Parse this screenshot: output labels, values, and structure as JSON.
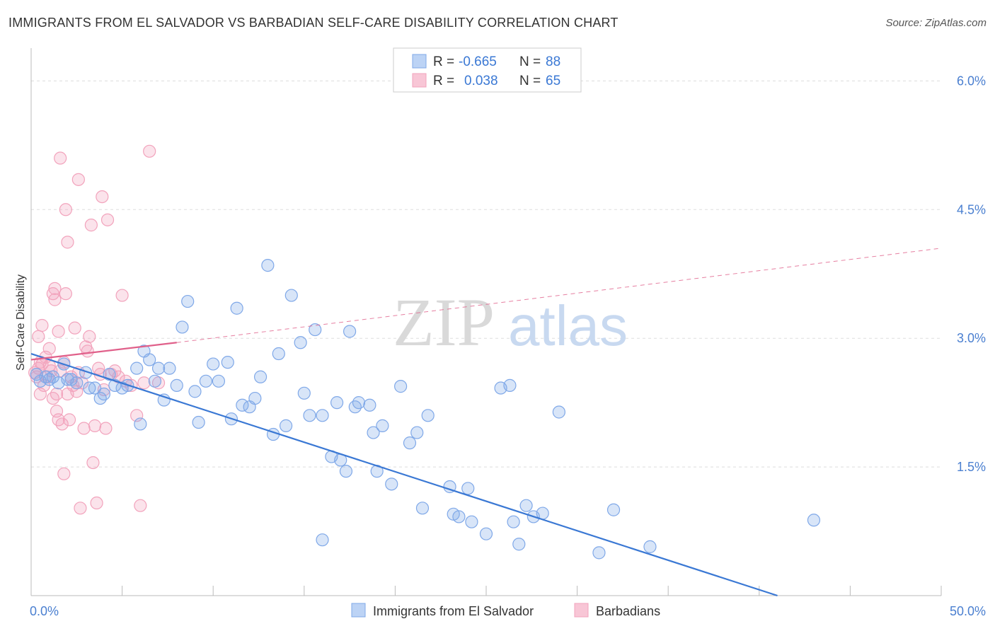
{
  "title": "IMMIGRANTS FROM EL SALVADOR VS BARBADIAN SELF-CARE DISABILITY CORRELATION CHART",
  "source": "Source: ZipAtlas.com",
  "watermark": {
    "zip": "ZIP",
    "atlas": "atlas"
  },
  "chart_data": {
    "type": "scatter",
    "ylabel": "Self-Care Disability",
    "xlim": [
      0,
      50
    ],
    "ylim": [
      0,
      6.3
    ],
    "x_tick_labels": [
      "0.0%",
      "50.0%"
    ],
    "y_ticks": [
      1.5,
      3.0,
      4.5,
      6.0
    ],
    "y_tick_labels": [
      "1.5%",
      "3.0%",
      "4.5%",
      "6.0%"
    ],
    "grid": "horizontal dashed",
    "legend": {
      "position": "top-center",
      "entries": [
        {
          "r_label": "R =",
          "r": "-0.665",
          "n_label": "N =",
          "n": "88"
        },
        {
          "r_label": "R =",
          "r": "0.038",
          "n_label": "N =",
          "n": "65"
        }
      ]
    },
    "series": [
      {
        "name": "Immigrants from El Salvador",
        "color": "#7fa8e8",
        "trend_color": "#3a78d4",
        "trend": {
          "x": [
            0,
            41
          ],
          "y": [
            2.82,
            0.0
          ]
        },
        "points": [
          [
            0.3,
            2.58
          ],
          [
            0.5,
            2.5
          ],
          [
            0.8,
            2.55
          ],
          [
            1.0,
            2.52
          ],
          [
            1.2,
            2.55
          ],
          [
            1.5,
            2.48
          ],
          [
            1.8,
            2.7
          ],
          [
            2.0,
            2.52
          ],
          [
            2.2,
            2.52
          ],
          [
            2.5,
            2.48
          ],
          [
            3.0,
            2.6
          ],
          [
            3.2,
            2.42
          ],
          [
            3.5,
            2.42
          ],
          [
            3.8,
            2.3
          ],
          [
            4.0,
            2.35
          ],
          [
            4.3,
            2.58
          ],
          [
            4.6,
            2.45
          ],
          [
            5.0,
            2.42
          ],
          [
            5.3,
            2.45
          ],
          [
            5.8,
            2.65
          ],
          [
            6.0,
            2.0
          ],
          [
            6.2,
            2.85
          ],
          [
            6.5,
            2.75
          ],
          [
            6.8,
            2.5
          ],
          [
            7.0,
            2.65
          ],
          [
            7.3,
            2.28
          ],
          [
            7.6,
            2.65
          ],
          [
            8.0,
            2.45
          ],
          [
            8.3,
            3.13
          ],
          [
            8.6,
            3.43
          ],
          [
            9.0,
            2.38
          ],
          [
            9.2,
            2.02
          ],
          [
            9.6,
            2.5
          ],
          [
            10.0,
            2.7
          ],
          [
            10.3,
            2.5
          ],
          [
            10.8,
            2.72
          ],
          [
            11.0,
            2.06
          ],
          [
            11.3,
            3.35
          ],
          [
            11.6,
            2.22
          ],
          [
            12.0,
            2.2
          ],
          [
            12.3,
            2.3
          ],
          [
            12.6,
            2.55
          ],
          [
            13.0,
            3.85
          ],
          [
            13.3,
            1.88
          ],
          [
            13.6,
            2.82
          ],
          [
            14.0,
            1.98
          ],
          [
            14.3,
            3.5
          ],
          [
            14.8,
            2.95
          ],
          [
            15.0,
            2.36
          ],
          [
            15.3,
            2.1
          ],
          [
            15.6,
            3.1
          ],
          [
            16.0,
            2.1
          ],
          [
            16.5,
            1.62
          ],
          [
            16.8,
            2.25
          ],
          [
            17.0,
            1.58
          ],
          [
            17.3,
            1.45
          ],
          [
            17.5,
            3.08
          ],
          [
            17.8,
            2.2
          ],
          [
            18.0,
            2.25
          ],
          [
            18.6,
            2.22
          ],
          [
            18.8,
            1.9
          ],
          [
            19.0,
            1.45
          ],
          [
            19.3,
            1.98
          ],
          [
            19.8,
            1.3
          ],
          [
            20.3,
            2.44
          ],
          [
            20.8,
            1.78
          ],
          [
            21.2,
            1.9
          ],
          [
            21.5,
            1.02
          ],
          [
            21.8,
            2.1
          ],
          [
            23.0,
            1.27
          ],
          [
            23.2,
            0.95
          ],
          [
            23.5,
            0.92
          ],
          [
            24.0,
            1.25
          ],
          [
            24.2,
            0.86
          ],
          [
            25.0,
            0.72
          ],
          [
            25.8,
            2.42
          ],
          [
            26.3,
            2.45
          ],
          [
            26.5,
            0.86
          ],
          [
            26.8,
            0.6
          ],
          [
            27.2,
            1.05
          ],
          [
            27.6,
            0.92
          ],
          [
            28.1,
            0.96
          ],
          [
            29.0,
            2.14
          ],
          [
            31.2,
            0.5
          ],
          [
            32.0,
            1.0
          ],
          [
            34.0,
            0.57
          ],
          [
            43.0,
            0.88
          ],
          [
            16.0,
            0.65
          ]
        ]
      },
      {
        "name": "Barbadians",
        "color": "#f2a3bc",
        "trend_color": "#e0608a",
        "trend": {
          "x": [
            0,
            8
          ],
          "y": [
            2.75,
            2.95
          ]
        },
        "trend_extension": {
          "x": [
            8,
            50
          ],
          "y": [
            2.95,
            4.05
          ]
        },
        "points": [
          [
            0.2,
            2.6
          ],
          [
            0.3,
            2.55
          ],
          [
            0.4,
            2.65
          ],
          [
            0.5,
            2.72
          ],
          [
            0.6,
            2.7
          ],
          [
            0.5,
            2.35
          ],
          [
            0.4,
            3.02
          ],
          [
            0.7,
            2.45
          ],
          [
            0.8,
            2.78
          ],
          [
            0.6,
            3.15
          ],
          [
            0.9,
            2.55
          ],
          [
            1.0,
            2.68
          ],
          [
            1.0,
            2.88
          ],
          [
            1.1,
            2.62
          ],
          [
            1.2,
            2.3
          ],
          [
            1.2,
            3.52
          ],
          [
            1.3,
            3.58
          ],
          [
            1.3,
            3.45
          ],
          [
            1.4,
            2.35
          ],
          [
            1.4,
            2.15
          ],
          [
            1.5,
            2.05
          ],
          [
            1.5,
            3.08
          ],
          [
            1.6,
            2.62
          ],
          [
            1.6,
            5.1
          ],
          [
            1.7,
            2.0
          ],
          [
            1.8,
            2.72
          ],
          [
            1.8,
            1.42
          ],
          [
            1.9,
            4.5
          ],
          [
            1.9,
            3.52
          ],
          [
            2.0,
            2.35
          ],
          [
            2.0,
            4.12
          ],
          [
            2.1,
            2.05
          ],
          [
            2.2,
            2.55
          ],
          [
            2.3,
            2.45
          ],
          [
            2.4,
            3.12
          ],
          [
            2.5,
            2.38
          ],
          [
            2.6,
            2.6
          ],
          [
            2.6,
            4.85
          ],
          [
            2.7,
            1.02
          ],
          [
            2.8,
            2.48
          ],
          [
            2.9,
            1.95
          ],
          [
            3.0,
            2.9
          ],
          [
            3.1,
            2.85
          ],
          [
            3.2,
            3.02
          ],
          [
            3.3,
            4.32
          ],
          [
            3.4,
            1.55
          ],
          [
            3.5,
            1.98
          ],
          [
            3.6,
            1.08
          ],
          [
            3.7,
            2.65
          ],
          [
            3.8,
            2.58
          ],
          [
            3.9,
            4.65
          ],
          [
            4.0,
            2.4
          ],
          [
            4.1,
            1.95
          ],
          [
            4.2,
            4.38
          ],
          [
            4.4,
            2.58
          ],
          [
            4.6,
            2.62
          ],
          [
            4.8,
            2.55
          ],
          [
            5.0,
            3.5
          ],
          [
            5.2,
            2.5
          ],
          [
            5.5,
            2.45
          ],
          [
            5.8,
            2.1
          ],
          [
            6.0,
            1.05
          ],
          [
            6.2,
            2.48
          ],
          [
            6.5,
            5.18
          ],
          [
            7.0,
            2.48
          ]
        ]
      }
    ]
  },
  "bottom_legend": [
    "Immigrants from El Salvador",
    "Barbadians"
  ]
}
